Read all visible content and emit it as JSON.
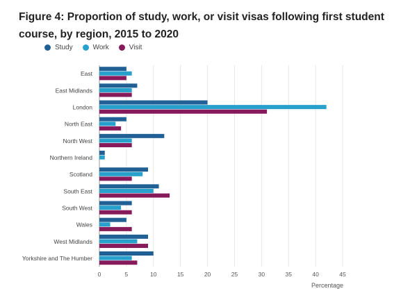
{
  "title": "Figure 4: Proportion of study, work, or visit visas following first student course, by region, 2015 to 2020",
  "chart_data": {
    "type": "bar",
    "orientation": "horizontal",
    "categories": [
      "East",
      "East Midlands",
      "London",
      "North East",
      "North West",
      "Northern Ireland",
      "Scotland",
      "South East",
      "South West",
      "Wales",
      "West Midlands",
      "Yorkshire and The Humber"
    ],
    "series": [
      {
        "name": "Study",
        "color": "#206095",
        "values": [
          5,
          7,
          20,
          5,
          12,
          1,
          9,
          11,
          6,
          5,
          9,
          10
        ]
      },
      {
        "name": "Work",
        "color": "#27a0cc",
        "values": [
          6,
          6,
          42,
          3,
          6,
          1,
          8,
          10,
          4,
          2,
          7,
          6
        ]
      },
      {
        "name": "Visit",
        "color": "#871a5b",
        "values": [
          5,
          6,
          31,
          4,
          6,
          0,
          6,
          13,
          6,
          6,
          9,
          7
        ]
      }
    ],
    "xlim": [
      0,
      45
    ],
    "xticks": [
      0,
      5,
      10,
      15,
      20,
      25,
      30,
      35,
      40,
      45
    ],
    "xlabel": "Percentage",
    "ylabel": "",
    "legend_position": "top-left",
    "grid": true
  }
}
